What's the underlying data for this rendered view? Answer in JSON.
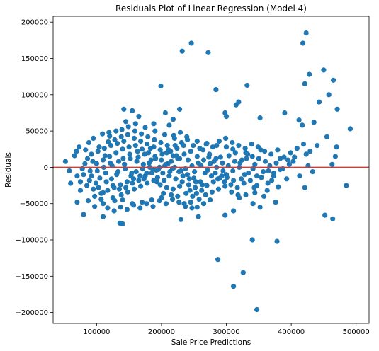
{
  "chart_data": {
    "type": "scatter",
    "title": "Residuals Plot of Linear Regression (Model 4)",
    "xlabel": "Sale Price Predictions",
    "ylabel": "Residuals",
    "xlim": [
      33000,
      520000
    ],
    "ylim": [
      -215000,
      208000
    ],
    "x_ticks": [
      100000,
      200000,
      300000,
      400000,
      500000
    ],
    "x_tick_labels": [
      "100000",
      "200000",
      "300000",
      "400000",
      "500000"
    ],
    "y_ticks": [
      -200000,
      -150000,
      -100000,
      -50000,
      0,
      50000,
      100000,
      150000,
      200000
    ],
    "y_tick_labels": [
      "−200000",
      "−150000",
      "−100000",
      "−50000",
      "0",
      "50000",
      "100000",
      "150000",
      "200000"
    ],
    "grid": false,
    "point_color": "#1f77b4",
    "reference_line": {
      "y": 0,
      "color": "#e8312a"
    },
    "points": [
      [
        423000,
        185000
      ],
      [
        418000,
        171000
      ],
      [
        246000,
        171000
      ],
      [
        232000,
        160000
      ],
      [
        272000,
        158000
      ],
      [
        450000,
        134000
      ],
      [
        428000,
        128000
      ],
      [
        465000,
        120000
      ],
      [
        421000,
        115000
      ],
      [
        332000,
        113000
      ],
      [
        199000,
        112000
      ],
      [
        458000,
        100000
      ],
      [
        284000,
        107000
      ],
      [
        443000,
        90000
      ],
      [
        319000,
        90000
      ],
      [
        315000,
        86000
      ],
      [
        471000,
        80000
      ],
      [
        142000,
        80000
      ],
      [
        155000,
        78000
      ],
      [
        206000,
        75000
      ],
      [
        228000,
        80000
      ],
      [
        298000,
        75000
      ],
      [
        390000,
        75000
      ],
      [
        412000,
        65000
      ],
      [
        352000,
        68000
      ],
      [
        218000,
        66000
      ],
      [
        165000,
        70000
      ],
      [
        300000,
        70000
      ],
      [
        435000,
        62000
      ],
      [
        417000,
        58000
      ],
      [
        491000,
        53000
      ],
      [
        188000,
        60000
      ],
      [
        212000,
        58000
      ],
      [
        455000,
        42000
      ],
      [
        470000,
        28000
      ],
      [
        440000,
        30000
      ],
      [
        468000,
        15000
      ],
      [
        463000,
        4000
      ],
      [
        426000,
        2000
      ],
      [
        405000,
        14000
      ],
      [
        395000,
        10000
      ],
      [
        383000,
        -3000
      ],
      [
        373000,
        -8000
      ],
      [
        370000,
        -18000
      ],
      [
        364000,
        -22000
      ],
      [
        347000,
        -25000
      ],
      [
        358000,
        -40000
      ],
      [
        341000,
        -50000
      ],
      [
        344000,
        -35000
      ],
      [
        352000,
        -55000
      ],
      [
        330000,
        -38000
      ],
      [
        311000,
        -60000
      ],
      [
        320000,
        -42000
      ],
      [
        376000,
        -48000
      ],
      [
        380000,
        -27000
      ],
      [
        421000,
        -28000
      ],
      [
        485000,
        -25000
      ],
      [
        452000,
        -66000
      ],
      [
        464000,
        -71000
      ],
      [
        298000,
        -66000
      ],
      [
        340000,
        -100000
      ],
      [
        378000,
        -102000
      ],
      [
        287000,
        -127000
      ],
      [
        326000,
        -145000
      ],
      [
        311000,
        -164000
      ],
      [
        347000,
        -196000
      ],
      [
        257000,
        -68000
      ],
      [
        230000,
        -72000
      ],
      [
        136000,
        -77000
      ],
      [
        140000,
        -78000
      ],
      [
        110000,
        -68000
      ],
      [
        80000,
        -65000
      ],
      [
        70000,
        -48000
      ],
      [
        110000,
        -50000
      ],
      [
        60000,
        -22000
      ],
      [
        52000,
        8000
      ],
      [
        58000,
        -5000
      ],
      [
        66000,
        16000
      ],
      [
        69000,
        22000
      ],
      [
        88000,
        34000
      ],
      [
        95000,
        40000
      ],
      [
        120000,
        43000
      ],
      [
        130000,
        50000
      ],
      [
        145000,
        63000
      ],
      [
        160000,
        60000
      ],
      [
        175000,
        55000
      ],
      [
        190000,
        50000
      ],
      [
        205000,
        45000
      ],
      [
        220000,
        40000
      ],
      [
        240000,
        38000
      ],
      [
        255000,
        36000
      ],
      [
        270000,
        33000
      ],
      [
        285000,
        30000
      ],
      [
        300000,
        28000
      ],
      [
        310000,
        25000
      ],
      [
        330000,
        20000
      ],
      [
        340000,
        15000
      ],
      [
        350000,
        12000
      ],
      [
        360000,
        8000
      ],
      [
        365000,
        -5000
      ],
      [
        255000,
        -55000
      ],
      [
        265000,
        -50000
      ],
      [
        275000,
        -45000
      ],
      [
        245000,
        -48000
      ],
      [
        235000,
        -50000
      ],
      [
        225000,
        -40000
      ],
      [
        215000,
        -38000
      ],
      [
        200000,
        -42000
      ],
      [
        185000,
        -45000
      ],
      [
        170000,
        -48000
      ],
      [
        155000,
        -50000
      ],
      [
        140000,
        -45000
      ],
      [
        125000,
        -42000
      ],
      [
        110000,
        -35000
      ],
      [
        95000,
        -30000
      ],
      [
        85000,
        -25000
      ],
      [
        75000,
        -20000
      ],
      [
        80000,
        -10000
      ],
      [
        90000,
        -5000
      ],
      [
        100000,
        5000
      ],
      [
        110000,
        10000
      ],
      [
        120000,
        15000
      ],
      [
        130000,
        20000
      ],
      [
        140000,
        25000
      ],
      [
        150000,
        28000
      ],
      [
        160000,
        30000
      ],
      [
        170000,
        25000
      ],
      [
        180000,
        20000
      ],
      [
        190000,
        15000
      ],
      [
        200000,
        10000
      ],
      [
        210000,
        5000
      ],
      [
        220000,
        0
      ],
      [
        230000,
        -5000
      ],
      [
        240000,
        -10000
      ],
      [
        250000,
        -15000
      ],
      [
        260000,
        -20000
      ],
      [
        270000,
        -25000
      ],
      [
        280000,
        -20000
      ],
      [
        290000,
        -15000
      ],
      [
        300000,
        -10000
      ],
      [
        310000,
        -5000
      ],
      [
        320000,
        0
      ],
      [
        105000,
        -15000
      ],
      [
        115000,
        -20000
      ],
      [
        125000,
        -25000
      ],
      [
        135000,
        -30000
      ],
      [
        145000,
        -28000
      ],
      [
        155000,
        -22000
      ],
      [
        165000,
        -18000
      ],
      [
        175000,
        -12000
      ],
      [
        185000,
        -8000
      ],
      [
        195000,
        -3000
      ],
      [
        205000,
        2000
      ],
      [
        215000,
        8000
      ],
      [
        225000,
        12000
      ],
      [
        235000,
        18000
      ],
      [
        245000,
        22000
      ],
      [
        255000,
        15000
      ],
      [
        265000,
        10000
      ],
      [
        275000,
        5000
      ],
      [
        285000,
        0
      ],
      [
        295000,
        -5000
      ],
      [
        118000,
        35000
      ],
      [
        128000,
        38000
      ],
      [
        138000,
        42000
      ],
      [
        148000,
        45000
      ],
      [
        158000,
        40000
      ],
      [
        168000,
        36000
      ],
      [
        178000,
        32000
      ],
      [
        188000,
        28000
      ],
      [
        198000,
        24000
      ],
      [
        208000,
        20000
      ],
      [
        218000,
        16000
      ],
      [
        228000,
        12000
      ],
      [
        92000,
        18000
      ],
      [
        102000,
        22000
      ],
      [
        112000,
        26000
      ],
      [
        122000,
        30000
      ],
      [
        132000,
        33000
      ],
      [
        142000,
        36000
      ],
      [
        152000,
        12000
      ],
      [
        162000,
        8000
      ],
      [
        172000,
        4000
      ],
      [
        182000,
        0
      ],
      [
        192000,
        -4000
      ],
      [
        202000,
        -8000
      ],
      [
        212000,
        -12000
      ],
      [
        222000,
        -16000
      ],
      [
        232000,
        -20000
      ],
      [
        242000,
        -24000
      ],
      [
        252000,
        -28000
      ],
      [
        262000,
        -32000
      ],
      [
        97000,
        -40000
      ],
      [
        107000,
        -36000
      ],
      [
        117000,
        -32000
      ],
      [
        127000,
        -28000
      ],
      [
        137000,
        -24000
      ],
      [
        147000,
        -20000
      ],
      [
        157000,
        -16000
      ],
      [
        167000,
        -12000
      ],
      [
        177000,
        -8000
      ],
      [
        187000,
        -4000
      ],
      [
        197000,
        0
      ],
      [
        207000,
        4000
      ],
      [
        217000,
        -2000
      ],
      [
        227000,
        -6000
      ],
      [
        237000,
        -2000
      ],
      [
        247000,
        2000
      ],
      [
        257000,
        6000
      ],
      [
        267000,
        -8000
      ],
      [
        277000,
        -12000
      ],
      [
        287000,
        -16000
      ],
      [
        297000,
        -20000
      ],
      [
        307000,
        -24000
      ],
      [
        317000,
        -28000
      ],
      [
        327000,
        -22000
      ],
      [
        337000,
        -18000
      ],
      [
        347000,
        -12000
      ],
      [
        357000,
        -6000
      ],
      [
        367000,
        2000
      ],
      [
        377000,
        6000
      ],
      [
        387000,
        -2000
      ],
      [
        397000,
        4000
      ],
      [
        82000,
        5000
      ],
      [
        86000,
        12000
      ],
      [
        78000,
        -2000
      ],
      [
        92000,
        -12000
      ],
      [
        99000,
        -22000
      ],
      [
        104000,
        28000
      ],
      [
        114000,
        -8000
      ],
      [
        124000,
        2000
      ],
      [
        134000,
        8000
      ],
      [
        144000,
        -2000
      ],
      [
        154000,
        -8000
      ],
      [
        164000,
        14000
      ],
      [
        174000,
        18000
      ],
      [
        184000,
        10000
      ],
      [
        194000,
        -14000
      ],
      [
        204000,
        -18000
      ],
      [
        214000,
        22000
      ],
      [
        224000,
        26000
      ],
      [
        234000,
        30000
      ],
      [
        244000,
        -32000
      ],
      [
        254000,
        -36000
      ],
      [
        264000,
        24000
      ],
      [
        274000,
        18000
      ],
      [
        284000,
        12000
      ],
      [
        294000,
        6000
      ],
      [
        304000,
        16000
      ],
      [
        314000,
        20000
      ],
      [
        324000,
        10000
      ],
      [
        334000,
        -8000
      ],
      [
        344000,
        4000
      ],
      [
        354000,
        -14000
      ],
      [
        128000,
        -46000
      ],
      [
        138000,
        -38000
      ],
      [
        148000,
        -34000
      ],
      [
        158000,
        -30000
      ],
      [
        168000,
        -26000
      ],
      [
        178000,
        -22000
      ],
      [
        188000,
        -18000
      ],
      [
        198000,
        -24000
      ],
      [
        208000,
        -28000
      ],
      [
        218000,
        -30000
      ],
      [
        228000,
        -26000
      ],
      [
        238000,
        -36000
      ],
      [
        248000,
        -40000
      ],
      [
        258000,
        -44000
      ],
      [
        268000,
        -38000
      ],
      [
        278000,
        -34000
      ],
      [
        288000,
        -30000
      ],
      [
        298000,
        -26000
      ],
      [
        308000,
        -34000
      ],
      [
        318000,
        -38000
      ],
      [
        328000,
        -10000
      ],
      [
        101000,
        -5000
      ],
      [
        111000,
        0
      ],
      [
        121000,
        6000
      ],
      [
        131000,
        -10000
      ],
      [
        141000,
        12000
      ],
      [
        151000,
        18000
      ],
      [
        161000,
        -6000
      ],
      [
        171000,
        -2000
      ],
      [
        181000,
        6000
      ],
      [
        191000,
        12000
      ],
      [
        201000,
        18000
      ],
      [
        211000,
        24000
      ],
      [
        221000,
        30000
      ],
      [
        231000,
        34000
      ],
      [
        241000,
        10000
      ],
      [
        251000,
        -6000
      ],
      [
        261000,
        2000
      ],
      [
        271000,
        -4000
      ],
      [
        281000,
        8000
      ],
      [
        291000,
        14000
      ],
      [
        301000,
        -14000
      ],
      [
        311000,
        -18000
      ],
      [
        321000,
        6000
      ],
      [
        331000,
        12000
      ],
      [
        341000,
        -2000
      ],
      [
        109000,
        46000
      ],
      [
        119000,
        48000
      ],
      [
        139000,
        52000
      ],
      [
        149000,
        56000
      ],
      [
        159000,
        50000
      ],
      [
        169000,
        46000
      ],
      [
        179000,
        42000
      ],
      [
        189000,
        38000
      ],
      [
        199000,
        34000
      ],
      [
        209000,
        30000
      ],
      [
        219000,
        44000
      ],
      [
        229000,
        48000
      ],
      [
        239000,
        42000
      ],
      [
        249000,
        30000
      ],
      [
        259000,
        26000
      ],
      [
        269000,
        32000
      ],
      [
        279000,
        28000
      ],
      [
        289000,
        36000
      ],
      [
        299000,
        40000
      ],
      [
        309000,
        34000
      ],
      [
        319000,
        30000
      ],
      [
        329000,
        26000
      ],
      [
        339000,
        32000
      ],
      [
        349000,
        28000
      ],
      [
        359000,
        22000
      ],
      [
        369000,
        18000
      ],
      [
        379000,
        24000
      ],
      [
        389000,
        14000
      ],
      [
        399000,
        20000
      ],
      [
        409000,
        26000
      ],
      [
        419000,
        32000
      ],
      [
        429000,
        22000
      ],
      [
        137000,
        -55000
      ],
      [
        147000,
        -58000
      ],
      [
        157000,
        -52000
      ],
      [
        167000,
        -56000
      ],
      [
        177000,
        -50000
      ],
      [
        187000,
        -54000
      ],
      [
        197000,
        -46000
      ],
      [
        207000,
        -50000
      ],
      [
        217000,
        -44000
      ],
      [
        227000,
        -48000
      ],
      [
        237000,
        -54000
      ],
      [
        247000,
        -56000
      ],
      [
        117000,
        -56000
      ],
      [
        127000,
        -60000
      ],
      [
        107000,
        -44000
      ],
      [
        97000,
        -54000
      ],
      [
        87000,
        -46000
      ],
      [
        75000,
        -32000
      ],
      [
        70000,
        -12000
      ],
      [
        73000,
        28000
      ],
      [
        83000,
        24000
      ],
      [
        89000,
        -18000
      ],
      [
        94000,
        8000
      ],
      [
        103000,
        -28000
      ],
      [
        113000,
        16000
      ],
      [
        123000,
        -16000
      ],
      [
        133000,
        -6000
      ],
      [
        143000,
        4000
      ],
      [
        153000,
        -12000
      ],
      [
        163000,
        22000
      ],
      [
        173000,
        -16000
      ],
      [
        183000,
        26000
      ],
      [
        193000,
        -20000
      ],
      [
        203000,
        -36000
      ],
      [
        213000,
        -6000
      ],
      [
        223000,
        16000
      ],
      [
        233000,
        -12000
      ],
      [
        243000,
        -16000
      ],
      [
        253000,
        -20000
      ],
      [
        263000,
        -24000
      ],
      [
        273000,
        14000
      ],
      [
        283000,
        -8000
      ],
      [
        293000,
        -12000
      ],
      [
        303000,
        2000
      ],
      [
        313000,
        8000
      ],
      [
        323000,
        -16000
      ],
      [
        333000,
        18000
      ],
      [
        343000,
        -28000
      ],
      [
        353000,
        24000
      ],
      [
        363000,
        -32000
      ],
      [
        373000,
        -12000
      ],
      [
        383000,
        12000
      ],
      [
        393000,
        -16000
      ],
      [
        403000,
        8000
      ],
      [
        413000,
        -12000
      ],
      [
        423000,
        18000
      ],
      [
        433000,
        -6000
      ]
    ]
  }
}
